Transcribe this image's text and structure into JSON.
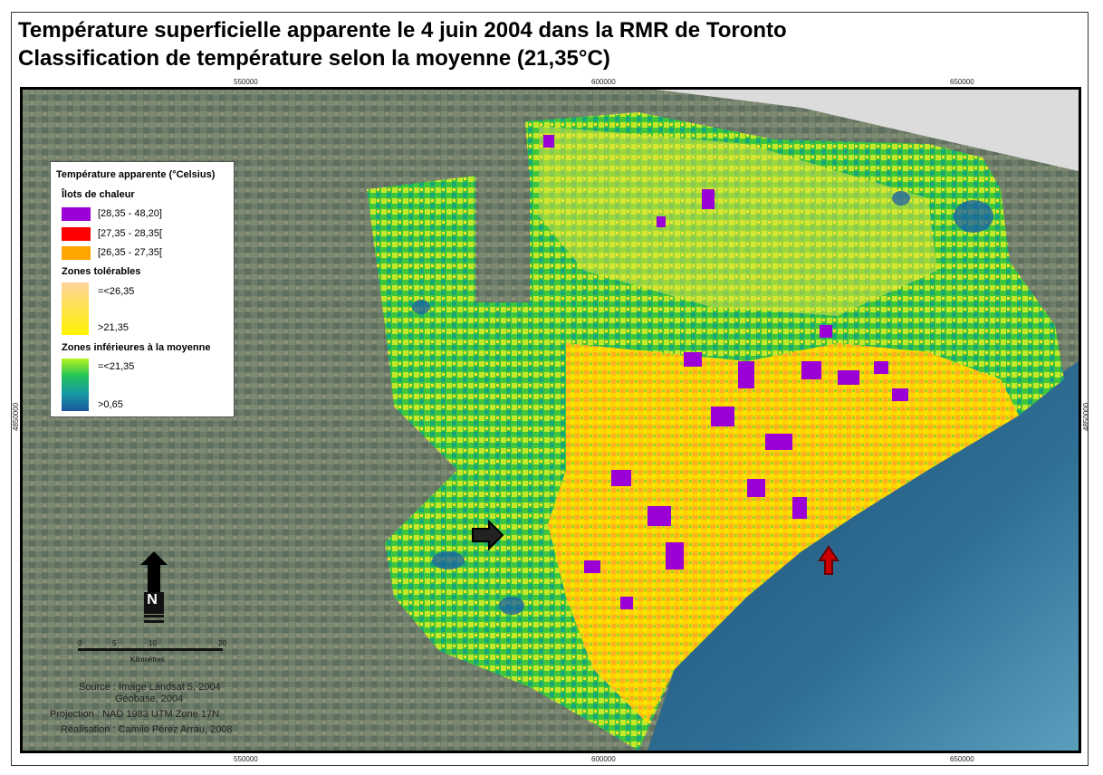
{
  "title": {
    "line1": "Température superficielle apparente le 4 juin 2004 dans la RMR de Toronto",
    "line2": "Classification de température selon la moyenne (21,35°C)"
  },
  "grid": {
    "top": [
      "550000",
      "600000",
      "650000"
    ],
    "bottom": [
      "550000",
      "600000",
      "650000"
    ],
    "left": "4850000",
    "right": "4850000"
  },
  "legend": {
    "title": "Température apparente (°Celsius)",
    "heat_title": "Îlots de chaleur",
    "heat_items": [
      {
        "label": "[28,35 - 48,20]",
        "color": "#9b00d6"
      },
      {
        "label": "[27,35 - 28,35[",
        "color": "#ff0000"
      },
      {
        "label": "[26,35 - 27,35[",
        "color": "#ffa500"
      }
    ],
    "tolerable_title": "Zones tolérables",
    "tolerable_top": "=<26,35",
    "tolerable_bottom": ">21,35",
    "below_title": "Zones inférieures à la moyenne",
    "below_top": "=<21,35",
    "below_bottom": ">0,65"
  },
  "scale": {
    "labels": [
      "0",
      "5",
      "10",
      "20"
    ],
    "unit": "Kilomètres"
  },
  "north": "N",
  "credits": {
    "source": "Source : Image Landsat 5, 2004",
    "source2": "Géobase, 2004",
    "projection": "Projection : NAD 1983 UTM Zone 17N",
    "realisation": "Réalisation : Camilo Pérez Arrau, 2008"
  },
  "colors": {
    "heat": "#9b00d6",
    "tolerable": "#ffd966",
    "cool": "#2fbf3f",
    "cold": "#1a5fa8",
    "lake": "#274f6e",
    "land": "#6f7f6b"
  }
}
